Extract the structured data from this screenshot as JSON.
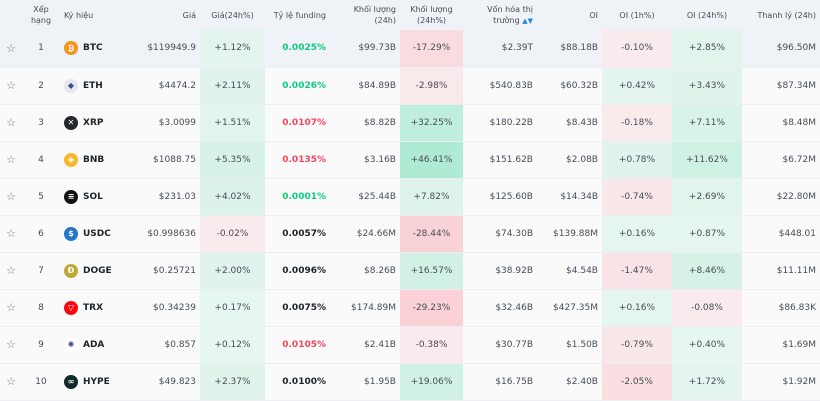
{
  "headers": {
    "rank": "Xếp hạng",
    "symbol": "Ký hiệu",
    "price": "Giá",
    "price_change": "Giá(24h%)",
    "funding": "Tỷ lệ funding",
    "volume": "Khối lượng (24h)",
    "volume_change": "Khối lượng (24h%)",
    "market_cap": "Vốn hóa thị trường",
    "oi": "OI",
    "oi_1h": "OI (1h%)",
    "oi_24h": "OI (24h%)",
    "liquidation": "Thanh lý (24h)"
  },
  "colors": {
    "positive": "#0ecb81",
    "negative": "#f6465d",
    "neutral": "#1e2329"
  },
  "rows": [
    {
      "rank": "1",
      "symbol": "BTC",
      "icon": "bitcoin-icon",
      "icon_color": "#f7931a",
      "glyph": "₿",
      "price": "$119949.9",
      "price_change": "+1.12%",
      "funding": "0.0025%",
      "funding_tone": "positive",
      "volume": "$99.73B",
      "volume_change": "-17.29%",
      "market_cap": "$2.39T",
      "oi": "$88.18B",
      "oi_1h": "-0.10%",
      "oi_24h": "+2.85%",
      "liquidation": "$96.50M"
    },
    {
      "rank": "2",
      "symbol": "ETH",
      "icon": "ethereum-icon",
      "icon_color": "#e8e8ea",
      "glyph": "◆",
      "price": "$4474.2",
      "price_change": "+2.11%",
      "funding": "0.0026%",
      "funding_tone": "positive",
      "volume": "$84.89B",
      "volume_change": "-2.98%",
      "market_cap": "$540.83B",
      "oi": "$60.32B",
      "oi_1h": "+0.42%",
      "oi_24h": "+3.43%",
      "liquidation": "$87.34M"
    },
    {
      "rank": "3",
      "symbol": "XRP",
      "icon": "xrp-icon",
      "icon_color": "#23292f",
      "glyph": "✕",
      "price": "$3.0099",
      "price_change": "+1.51%",
      "funding": "0.0107%",
      "funding_tone": "negative",
      "volume": "$8.82B",
      "volume_change": "+32.25%",
      "market_cap": "$180.22B",
      "oi": "$8.43B",
      "oi_1h": "-0.18%",
      "oi_24h": "+7.11%",
      "liquidation": "$8.48M"
    },
    {
      "rank": "4",
      "symbol": "BNB",
      "icon": "bnb-icon",
      "icon_color": "#f3ba2f",
      "glyph": "◈",
      "price": "$1088.75",
      "price_change": "+5.35%",
      "funding": "0.0135%",
      "funding_tone": "negative",
      "volume": "$3.16B",
      "volume_change": "+46.41%",
      "market_cap": "$151.62B",
      "oi": "$2.08B",
      "oi_1h": "+0.78%",
      "oi_24h": "+11.62%",
      "liquidation": "$6.72M"
    },
    {
      "rank": "5",
      "symbol": "SOL",
      "icon": "solana-icon",
      "icon_color": "#111111",
      "glyph": "≡",
      "price": "$231.03",
      "price_change": "+4.02%",
      "funding": "0.0001%",
      "funding_tone": "positive",
      "volume": "$25.44B",
      "volume_change": "+7.82%",
      "market_cap": "$125.60B",
      "oi": "$14.34B",
      "oi_1h": "-0.74%",
      "oi_24h": "+2.69%",
      "liquidation": "$22.80M"
    },
    {
      "rank": "6",
      "symbol": "USDC",
      "icon": "usdc-icon",
      "icon_color": "#2775ca",
      "glyph": "$",
      "price": "$0.998636",
      "price_change": "-0.02%",
      "funding": "0.0057%",
      "funding_tone": "neutral",
      "volume": "$24.66M",
      "volume_change": "-28.44%",
      "market_cap": "$74.30B",
      "oi": "$139.88M",
      "oi_1h": "+0.16%",
      "oi_24h": "+0.87%",
      "liquidation": "$448.01"
    },
    {
      "rank": "7",
      "symbol": "DOGE",
      "icon": "dogecoin-icon",
      "icon_color": "#c2a633",
      "glyph": "Ð",
      "price": "$0.25721",
      "price_change": "+2.00%",
      "funding": "0.0096%",
      "funding_tone": "neutral",
      "volume": "$8.26B",
      "volume_change": "+16.57%",
      "market_cap": "$38.92B",
      "oi": "$4.54B",
      "oi_1h": "-1.47%",
      "oi_24h": "+8.46%",
      "liquidation": "$11.11M"
    },
    {
      "rank": "8",
      "symbol": "TRX",
      "icon": "tron-icon",
      "icon_color": "#ff060a",
      "glyph": "▽",
      "price": "$0.34239",
      "price_change": "+0.17%",
      "funding": "0.0075%",
      "funding_tone": "neutral",
      "volume": "$174.89M",
      "volume_change": "-29.23%",
      "market_cap": "$32.46B",
      "oi": "$427.35M",
      "oi_1h": "+0.16%",
      "oi_24h": "-0.08%",
      "liquidation": "$86.83K"
    },
    {
      "rank": "9",
      "symbol": "ADA",
      "icon": "cardano-icon",
      "icon_color": "#ffffff",
      "glyph": "✺",
      "price": "$0.857",
      "price_change": "+0.12%",
      "funding": "0.0105%",
      "funding_tone": "negative",
      "volume": "$2.41B",
      "volume_change": "-0.38%",
      "market_cap": "$30.77B",
      "oi": "$1.50B",
      "oi_1h": "-0.79%",
      "oi_24h": "+0.40%",
      "liquidation": "$1.69M"
    },
    {
      "rank": "10",
      "symbol": "HYPE",
      "icon": "hyperliquid-icon",
      "icon_color": "#0f2a2a",
      "glyph": "∞",
      "price": "$49.823",
      "price_change": "+2.37%",
      "funding": "0.0100%",
      "funding_tone": "neutral",
      "volume": "$1.95B",
      "volume_change": "+19.06%",
      "market_cap": "$16.75B",
      "oi": "$2.40B",
      "oi_1h": "-2.05%",
      "oi_24h": "+1.72%",
      "liquidation": "$1.92M"
    }
  ]
}
